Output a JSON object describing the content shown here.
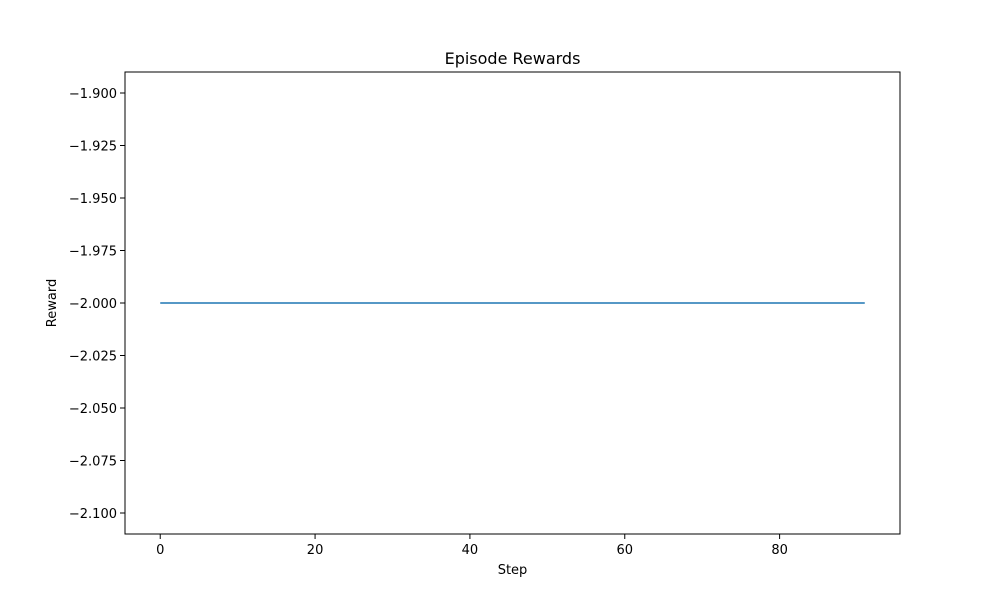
{
  "chart_data": {
    "type": "line",
    "title": "Episode Rewards",
    "xlabel": "Step",
    "ylabel": "Reward",
    "xlim": [
      -4.55,
      95.55
    ],
    "ylim": [
      -2.11,
      -1.89
    ],
    "xticks": [
      0,
      20,
      40,
      60,
      80
    ],
    "xtick_labels": [
      "0",
      "20",
      "40",
      "60",
      "80"
    ],
    "yticks": [
      -1.9,
      -1.925,
      -1.95,
      -1.975,
      -2.0,
      -2.025,
      -2.05,
      -2.075,
      -2.1
    ],
    "ytick_labels": [
      "−1.900",
      "−1.925",
      "−1.950",
      "−1.975",
      "−2.000",
      "−2.025",
      "−2.050",
      "−2.075",
      "−2.100"
    ],
    "grid": false,
    "series": [
      {
        "color": "#1f77b4",
        "x": [
          0,
          91
        ],
        "y": [
          -2.0,
          -2.0
        ]
      }
    ]
  }
}
